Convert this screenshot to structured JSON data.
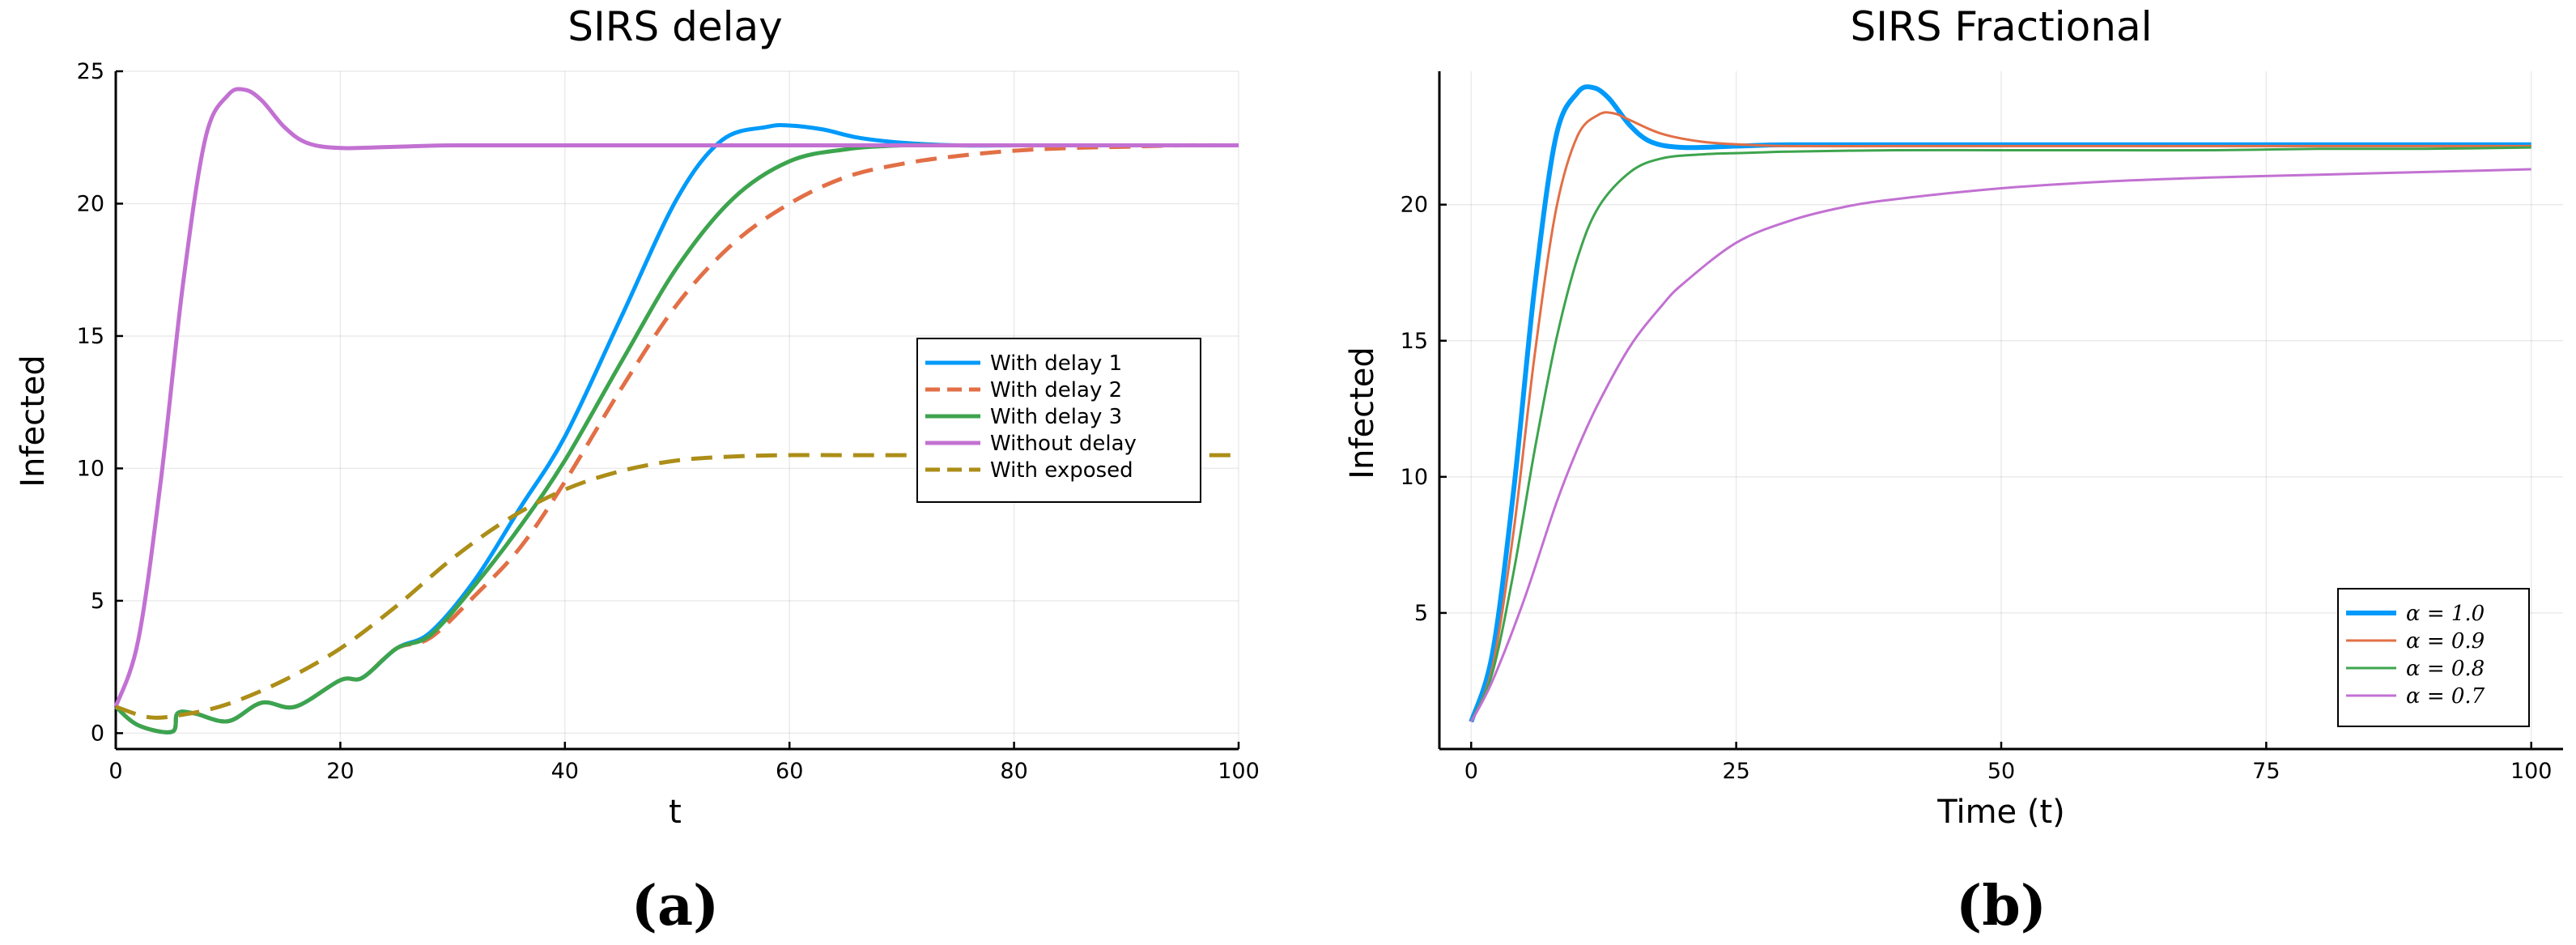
{
  "colors": {
    "blue": "#009AFA",
    "orange": "#E26F46",
    "green": "#3DA44E",
    "purple": "#C271D2",
    "olive": "#AC8E18"
  },
  "subfigures": [
    {
      "label": "(a)"
    },
    {
      "label": "(b)"
    }
  ],
  "chart_data": [
    {
      "type": "line",
      "title": "SIRS delay",
      "xlabel": "t",
      "ylabel": "Infected",
      "xlim": [
        0,
        100
      ],
      "ylim": [
        -0.6,
        25
      ],
      "xticks": [
        0,
        20,
        40,
        60,
        80,
        100
      ],
      "xtick_labels": [
        "0",
        "20",
        "40",
        "60",
        "80",
        "100"
      ],
      "yticks": [
        0,
        5,
        10,
        15,
        20,
        25
      ],
      "ytick_labels": [
        "0",
        "5",
        "10",
        "15",
        "20",
        "25"
      ],
      "grid": true,
      "legend": "center-right",
      "series": [
        {
          "name": "With delay 1",
          "color": "blue",
          "dash": "solid",
          "x": [
            0,
            2,
            5,
            5.5,
            7,
            10,
            13,
            16,
            20,
            22,
            25,
            28,
            32,
            36,
            40,
            45,
            50,
            54,
            58,
            60,
            63,
            66,
            70,
            75,
            80,
            85,
            90,
            95,
            100
          ],
          "y": [
            1.0,
            0.3,
            0.05,
            0.75,
            0.75,
            0.45,
            1.15,
            1.0,
            2.0,
            2.1,
            3.2,
            3.8,
            5.8,
            8.5,
            11.2,
            15.7,
            20.2,
            22.4,
            22.9,
            22.95,
            22.8,
            22.5,
            22.3,
            22.2,
            22.2,
            22.2,
            22.2,
            22.2,
            22.2
          ]
        },
        {
          "name": "With delay 2",
          "color": "orange",
          "dash": "dashed",
          "x": [
            0,
            2,
            5,
            5.5,
            7,
            10,
            13,
            16,
            20,
            22,
            25,
            28,
            32,
            36,
            40,
            45,
            50,
            55,
            60,
            65,
            70,
            75,
            80,
            85,
            90,
            95,
            100
          ],
          "y": [
            1.0,
            0.3,
            0.05,
            0.75,
            0.75,
            0.45,
            1.15,
            1.0,
            2.0,
            2.1,
            3.2,
            3.6,
            5.2,
            7.0,
            9.5,
            13.0,
            16.2,
            18.5,
            20.0,
            21.0,
            21.5,
            21.8,
            22.0,
            22.1,
            22.15,
            22.2,
            22.2
          ]
        },
        {
          "name": "With delay 3",
          "color": "green",
          "dash": "solid",
          "x": [
            0,
            2,
            5,
            5.5,
            7,
            10,
            13,
            16,
            20,
            22,
            25,
            28,
            32,
            36,
            40,
            45,
            50,
            55,
            60,
            65,
            70,
            75,
            80,
            85,
            90,
            95,
            100
          ],
          "y": [
            1.0,
            0.3,
            0.05,
            0.75,
            0.75,
            0.45,
            1.15,
            1.0,
            2.0,
            2.1,
            3.2,
            3.7,
            5.6,
            7.8,
            10.3,
            14.0,
            17.6,
            20.2,
            21.6,
            22.05,
            22.2,
            22.2,
            22.2,
            22.2,
            22.2,
            22.2,
            22.2
          ]
        },
        {
          "name": "Without delay",
          "color": "purple",
          "dash": "solid",
          "x": [
            0,
            2,
            4,
            6,
            8,
            10,
            11.5,
            13,
            15,
            17,
            20,
            25,
            30,
            40,
            50,
            60,
            70,
            80,
            90,
            100
          ],
          "y": [
            1.0,
            3.5,
            9.5,
            17.0,
            22.5,
            24.1,
            24.3,
            23.9,
            22.9,
            22.3,
            22.1,
            22.15,
            22.2,
            22.2,
            22.2,
            22.2,
            22.2,
            22.2,
            22.2,
            22.2
          ]
        },
        {
          "name": "With exposed",
          "color": "olive",
          "dash": "dashed",
          "x": [
            0,
            3,
            6,
            10,
            15,
            20,
            25,
            30,
            35,
            40,
            45,
            50,
            55,
            60,
            65,
            70,
            80,
            90,
            100
          ],
          "y": [
            1.0,
            0.6,
            0.7,
            1.1,
            2.0,
            3.2,
            4.8,
            6.6,
            8.1,
            9.2,
            9.9,
            10.3,
            10.45,
            10.5,
            10.5,
            10.5,
            10.5,
            10.5,
            10.5
          ]
        }
      ]
    },
    {
      "type": "line",
      "title": "SIRS Fractional",
      "xlabel": "Time (t)",
      "ylabel": "Infected",
      "xlim": [
        -3,
        103
      ],
      "ylim": [
        0.0,
        24.9
      ],
      "xticks": [
        0,
        25,
        50,
        75,
        100
      ],
      "xtick_labels": [
        "0",
        "25",
        "50",
        "75",
        "100"
      ],
      "yticks": [
        5,
        10,
        15,
        20
      ],
      "ytick_labels": [
        "5",
        "10",
        "15",
        "20"
      ],
      "grid": true,
      "legend": "bottom-right",
      "series": [
        {
          "name": "α = 1.0",
          "color": "blue",
          "dash": "solid",
          "x": [
            0,
            2,
            4,
            6,
            8,
            10,
            11.5,
            13,
            15,
            17,
            20,
            25,
            30,
            40,
            50,
            60,
            70,
            80,
            90,
            100
          ],
          "y": [
            1.0,
            3.5,
            9.5,
            17.0,
            22.5,
            24.1,
            24.3,
            23.9,
            22.9,
            22.3,
            22.1,
            22.15,
            22.2,
            22.2,
            22.2,
            22.2,
            22.2,
            22.2,
            22.2,
            22.2
          ]
        },
        {
          "name": "α = 0.9",
          "color": "orange",
          "dash": "solid",
          "x": [
            0,
            2,
            4,
            6,
            8,
            10,
            12,
            13.5,
            15,
            18,
            22,
            26,
            30,
            40,
            50,
            60,
            70,
            80,
            90,
            100
          ],
          "y": [
            1.0,
            3.0,
            8.0,
            14.5,
            19.8,
            22.5,
            23.3,
            23.35,
            23.1,
            22.6,
            22.3,
            22.2,
            22.15,
            22.15,
            22.15,
            22.15,
            22.15,
            22.15,
            22.15,
            22.15
          ]
        },
        {
          "name": "α = 0.8",
          "color": "green",
          "dash": "solid",
          "x": [
            0,
            2,
            4,
            6,
            8,
            10,
            12,
            15,
            18,
            22,
            26,
            30,
            40,
            50,
            60,
            70,
            80,
            90,
            100
          ],
          "y": [
            1.0,
            2.8,
            6.5,
            11.0,
            15.0,
            18.0,
            19.9,
            21.2,
            21.7,
            21.85,
            21.9,
            21.95,
            22.0,
            22.0,
            22.0,
            22.0,
            22.05,
            22.05,
            22.1
          ]
        },
        {
          "name": "α = 0.7",
          "color": "purple",
          "dash": "solid",
          "x": [
            0,
            2,
            5,
            8,
            10,
            12,
            15,
            18,
            20,
            25,
            30,
            35,
            40,
            50,
            60,
            70,
            80,
            90,
            100
          ],
          "y": [
            1.0,
            2.5,
            5.5,
            9.0,
            11.0,
            12.7,
            14.8,
            16.3,
            17.1,
            18.6,
            19.4,
            19.9,
            20.2,
            20.6,
            20.85,
            21.0,
            21.1,
            21.2,
            21.3
          ]
        }
      ]
    }
  ]
}
